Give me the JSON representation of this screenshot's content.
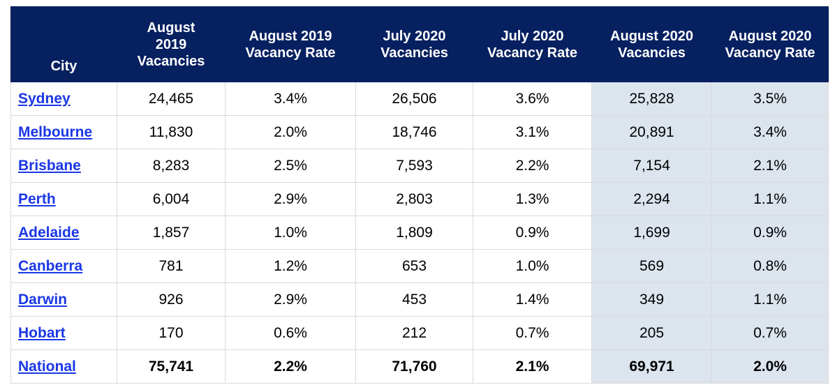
{
  "headers": {
    "city": "City",
    "aug2019_vacancies": [
      "August",
      "2019",
      "Vacancies"
    ],
    "aug2019_rate": [
      "August 2019",
      "Vacancy Rate"
    ],
    "jul2020_vacancies": [
      "July 2020",
      "Vacancies"
    ],
    "jul2020_rate": [
      "July 2020",
      "Vacancy Rate"
    ],
    "aug2020_vacancies": [
      "August 2020",
      "Vacancies"
    ],
    "aug2020_rate": [
      "August 2020",
      "Vacancy Rate"
    ]
  },
  "rows": [
    {
      "city": "Sydney",
      "aug2019_vac": "24,465",
      "aug2019_rate": "3.4%",
      "jul2020_vac": "26,506",
      "jul2020_rate": "3.6%",
      "aug2020_vac": "25,828",
      "aug2020_rate": "3.5%"
    },
    {
      "city": "Melbourne",
      "aug2019_vac": "11,830",
      "aug2019_rate": "2.0%",
      "jul2020_vac": "18,746",
      "jul2020_rate": "3.1%",
      "aug2020_vac": "20,891",
      "aug2020_rate": "3.4%"
    },
    {
      "city": "Brisbane",
      "aug2019_vac": "8,283",
      "aug2019_rate": "2.5%",
      "jul2020_vac": "7,593",
      "jul2020_rate": "2.2%",
      "aug2020_vac": "7,154",
      "aug2020_rate": "2.1%"
    },
    {
      "city": "Perth",
      "aug2019_vac": "6,004",
      "aug2019_rate": "2.9%",
      "jul2020_vac": "2,803",
      "jul2020_rate": "1.3%",
      "aug2020_vac": "2,294",
      "aug2020_rate": "1.1%"
    },
    {
      "city": "Adelaide",
      "aug2019_vac": "1,857",
      "aug2019_rate": "1.0%",
      "jul2020_vac": "1,809",
      "jul2020_rate": "0.9%",
      "aug2020_vac": "1,699",
      "aug2020_rate": "0.9%"
    },
    {
      "city": "Canberra",
      "aug2019_vac": "781",
      "aug2019_rate": "1.2%",
      "jul2020_vac": "653",
      "jul2020_rate": "1.0%",
      "aug2020_vac": "569",
      "aug2020_rate": "0.8%"
    },
    {
      "city": "Darwin",
      "aug2019_vac": "926",
      "aug2019_rate": "2.9%",
      "jul2020_vac": "453",
      "jul2020_rate": "1.4%",
      "aug2020_vac": "349",
      "aug2020_rate": "1.1%"
    },
    {
      "city": "Hobart",
      "aug2019_vac": "170",
      "aug2019_rate": "0.6%",
      "jul2020_vac": "212",
      "jul2020_rate": "0.7%",
      "aug2020_vac": "205",
      "aug2020_rate": "0.7%"
    }
  ],
  "total": {
    "city": "National",
    "aug2019_vac": "75,741",
    "aug2019_rate": "2.2%",
    "jul2020_vac": "71,760",
    "jul2020_rate": "2.1%",
    "aug2020_vac": "69,971",
    "aug2020_rate": "2.0%"
  },
  "colors": {
    "header_bg": "#062060",
    "header_text": "#ffffff",
    "link": "#1a37e6",
    "highlight_bg": "#dce4ee",
    "grid": "#d9d9d9"
  }
}
